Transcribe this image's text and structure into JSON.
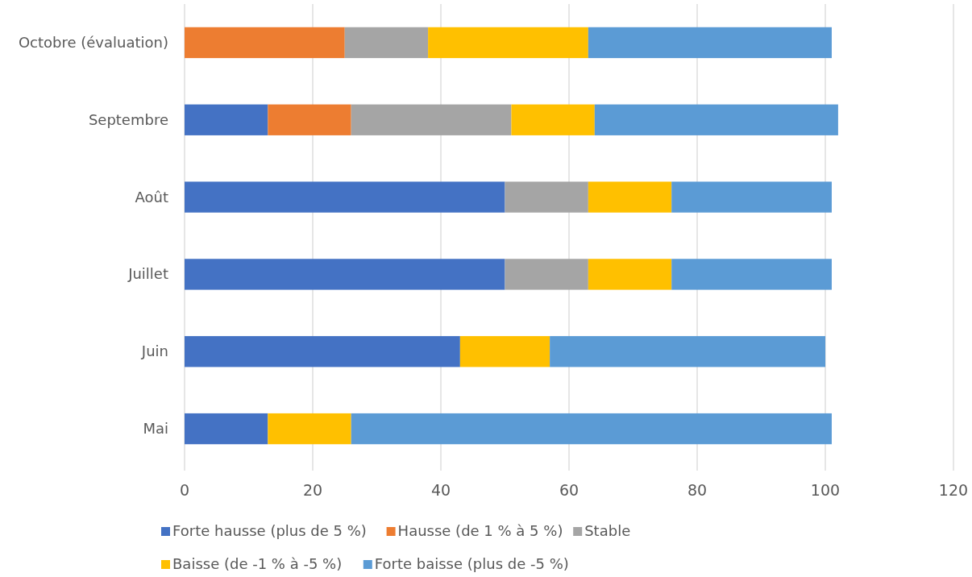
{
  "chart_data": {
    "type": "bar",
    "orientation": "horizontal",
    "stacked": true,
    "categories": [
      "Octobre (évaluation)",
      "Septembre",
      "Août",
      "Juillet",
      "Juin",
      "Mai"
    ],
    "series": [
      {
        "name": "Forte hausse (plus de 5 %)",
        "color": "#4472c4",
        "values": [
          null,
          13,
          50,
          50,
          43,
          13
        ]
      },
      {
        "name": "Hausse (de 1 % à 5 %)",
        "color": "#ed7d31",
        "values": [
          25,
          13,
          null,
          null,
          null,
          null
        ]
      },
      {
        "name": "Stable",
        "color": "#a5a5a5",
        "values": [
          13,
          25,
          13,
          13,
          null,
          null
        ]
      },
      {
        "name": "Baisse (de -1 % à -5 %)",
        "color": "#ffc000",
        "values": [
          25,
          13,
          13,
          13,
          14,
          13
        ]
      },
      {
        "name": "Forte baisse (plus de -5 %)",
        "color": "#5b9bd5",
        "values": [
          38,
          38,
          25,
          25,
          43,
          75
        ]
      }
    ],
    "xlim": [
      0,
      120
    ],
    "xticks": [
      0,
      20,
      40,
      60,
      80,
      100,
      120
    ],
    "grid": "x",
    "legend": "bottom"
  }
}
